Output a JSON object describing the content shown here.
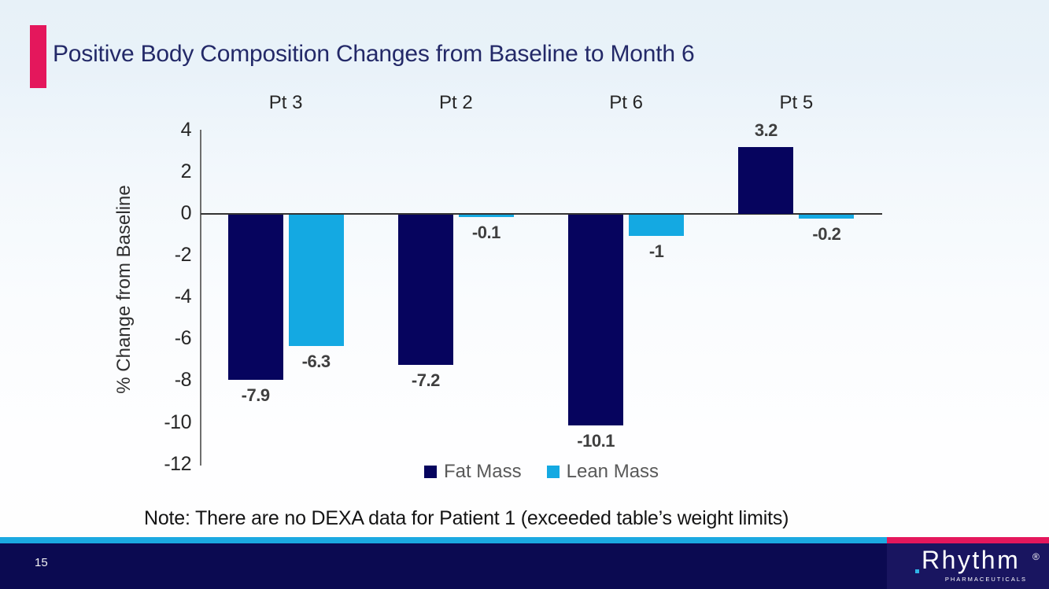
{
  "slide": {
    "title": "Positive Body Composition Changes from Baseline to Month 6",
    "note": "Note: There are no DEXA data for Patient 1 (exceeded table’s weight limits)",
    "page_number": "15"
  },
  "footer": {
    "logo_text": "Rhythm",
    "logo_registered": "®",
    "logo_subtext": "PHARMACEUTICALS"
  },
  "colors": {
    "accent_pink": "#E4175C",
    "stripe_cyan": "#1BA9E1",
    "footer_navy": "#0B0A51",
    "logo_block_navy": "#191560",
    "title_navy": "#232968",
    "fat_mass_navy": "#06045E",
    "lean_mass_blue": "#14A9E2"
  },
  "chart_data": {
    "type": "bar",
    "title": "",
    "categories": [
      "Pt 3",
      "Pt 2",
      "Pt 6",
      "Pt 5"
    ],
    "series": [
      {
        "name": "Fat Mass",
        "color": "#06045E",
        "values": [
          -7.9,
          -7.2,
          -10.1,
          3.2
        ]
      },
      {
        "name": "Lean Mass",
        "color": "#14A9E2",
        "values": [
          -6.3,
          -0.1,
          -1,
          -0.2
        ]
      }
    ],
    "xlabel": "",
    "ylabel": "% Change from Baseline",
    "ylim": [
      -12,
      4
    ],
    "ytick_step": 2,
    "grid": false,
    "legend_position": "bottom",
    "value_labels": true
  }
}
